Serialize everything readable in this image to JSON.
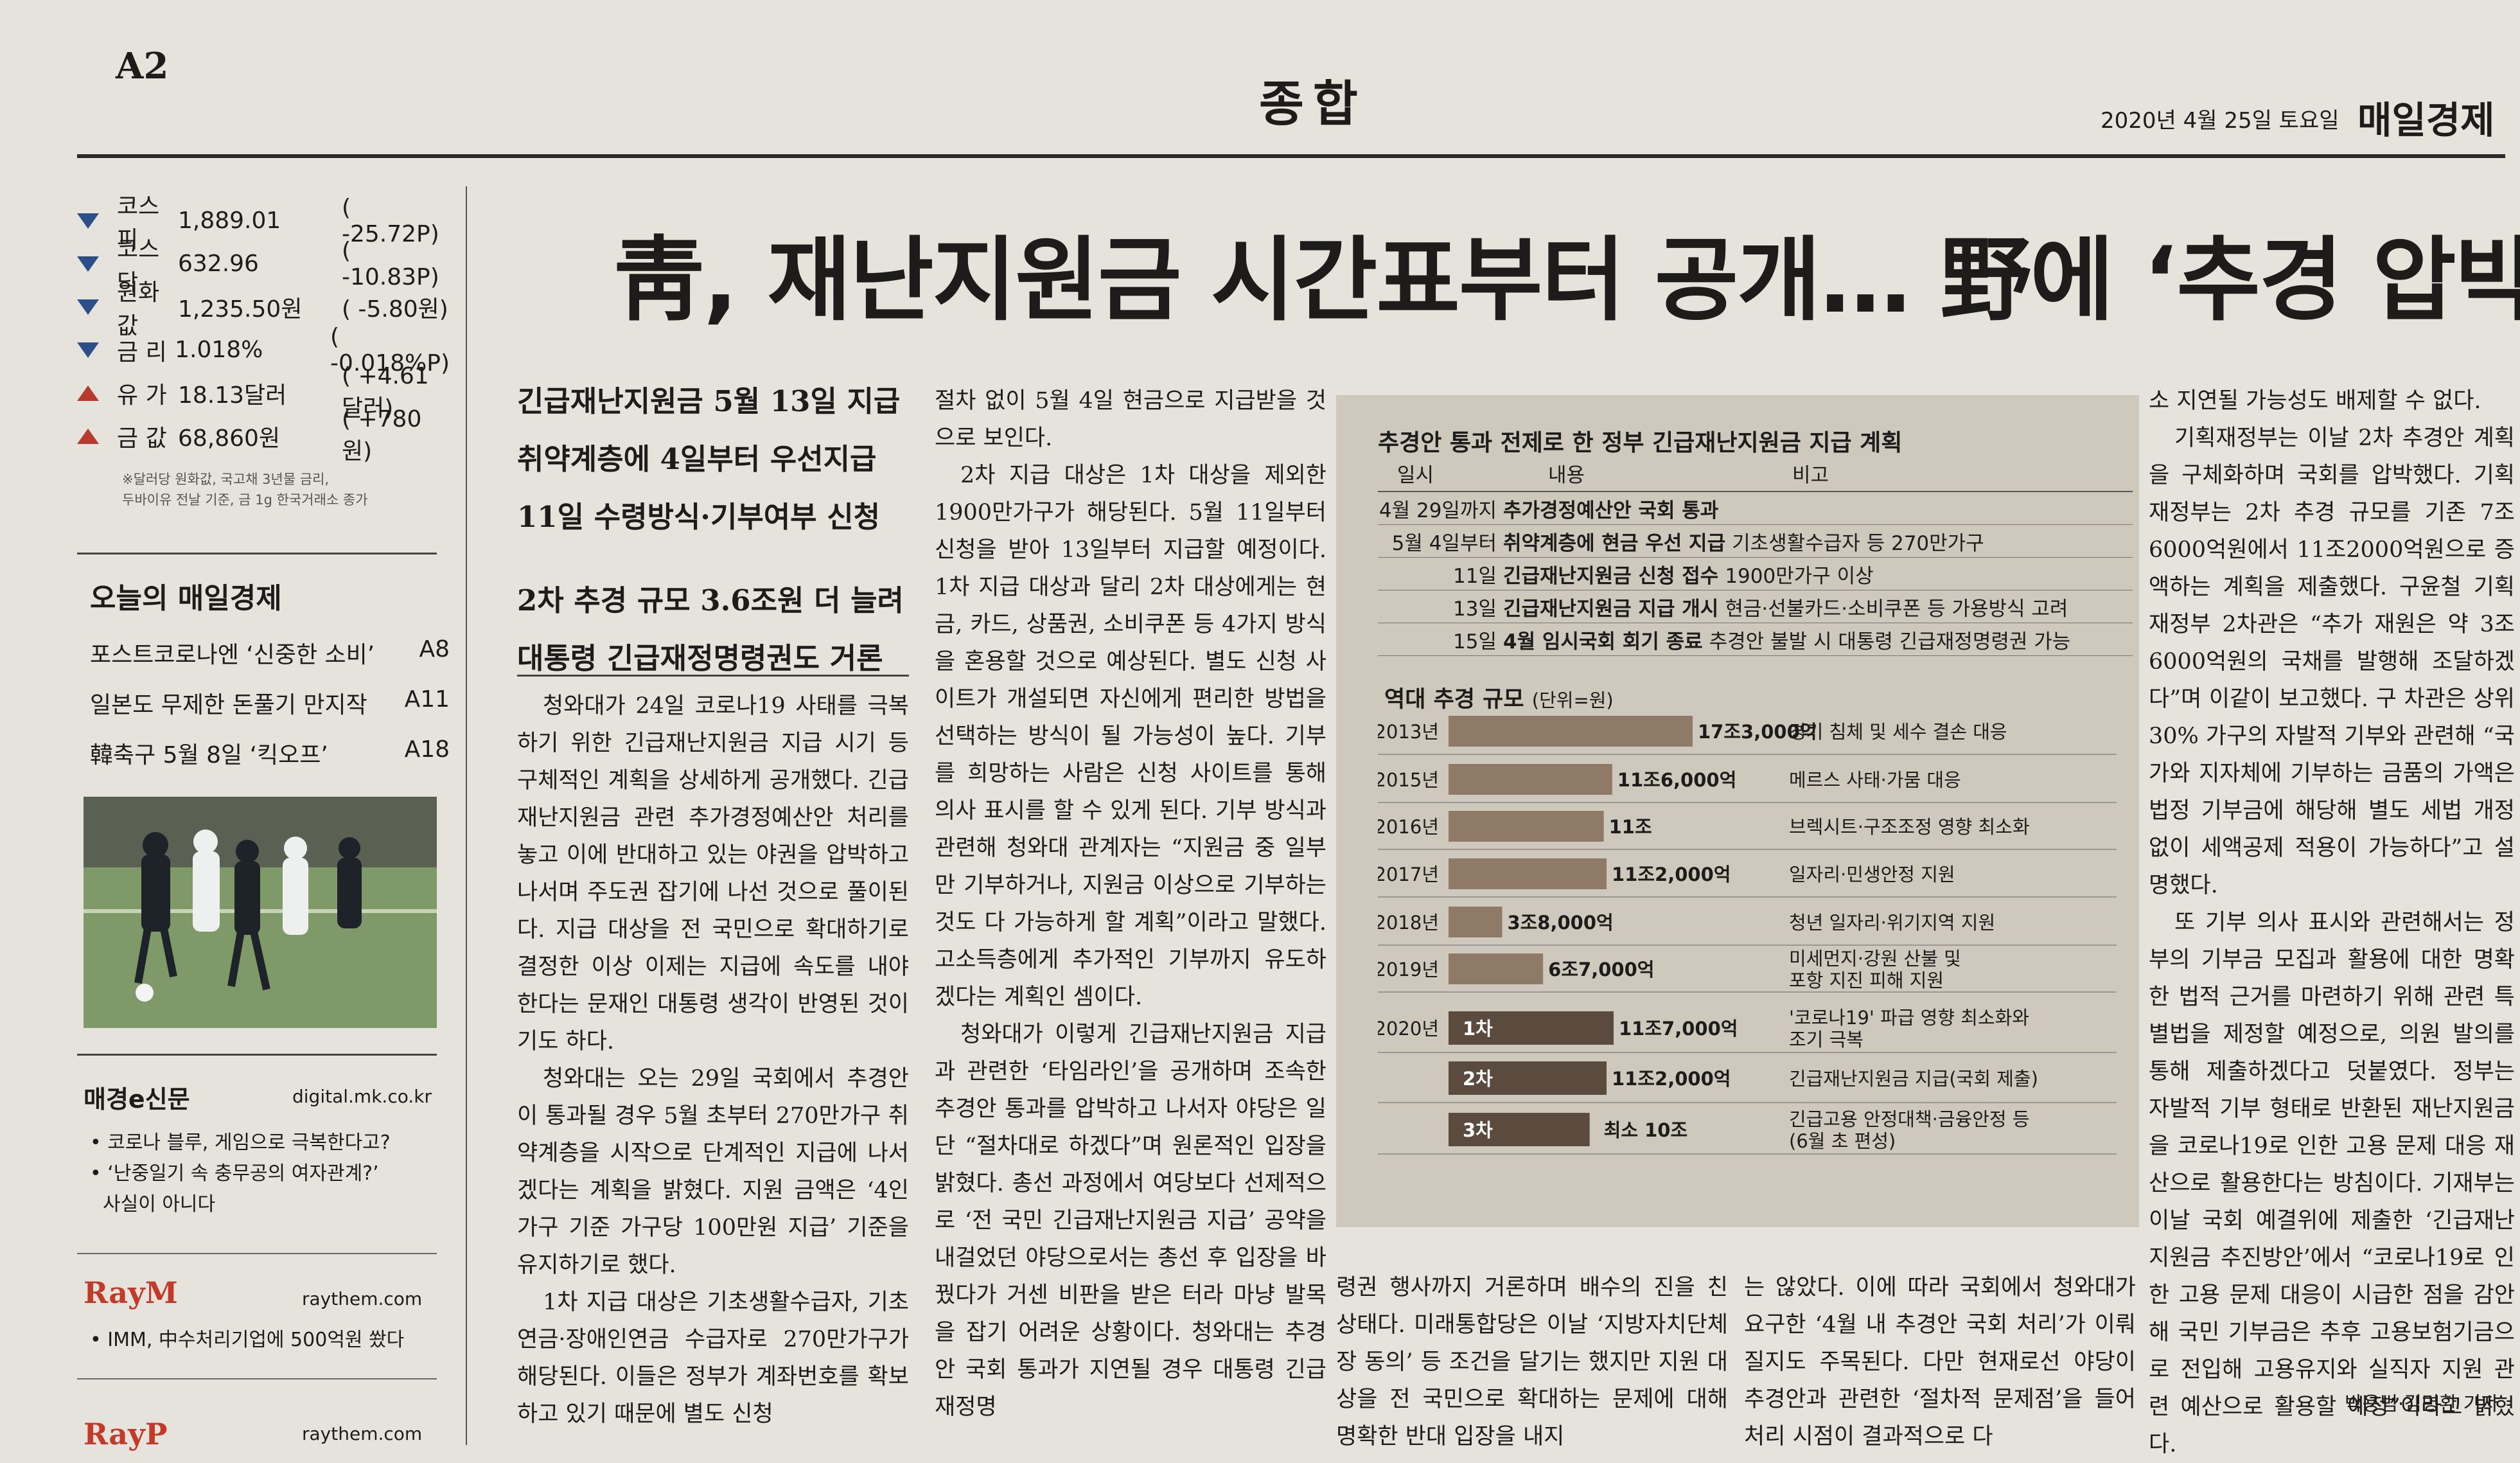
{
  "header": {
    "page": "A2",
    "section": "종합",
    "date": "2020년 4월 25일 토요일",
    "paper": "매일경제"
  },
  "markets": [
    {
      "dir": "down",
      "name": "코스피",
      "value": "1,889.01",
      "change": "( -25.72P)"
    },
    {
      "dir": "down",
      "name": "코스닥",
      "value": "632.96",
      "change": "( -10.83P)"
    },
    {
      "dir": "down",
      "name": "원화값",
      "value": "1,235.50원",
      "change": "( -5.80원)"
    },
    {
      "dir": "down",
      "name": "금 리",
      "value": "1.018%",
      "change": "( -0.018%P)"
    },
    {
      "dir": "up",
      "name": "유 가",
      "value": "18.13달러",
      "change": "( +4.61달러)"
    },
    {
      "dir": "up",
      "name": "금 값",
      "value": "68,860원",
      "change": "( +780원)"
    }
  ],
  "markets_note": [
    "※달러당 원화값, 국고채 3년물 금리,",
    "두바이유 전날 기준, 금 1g 한국거래소 종가"
  ],
  "today": {
    "title": "오늘의 매일경제",
    "items": [
      {
        "text": "포스트코로나엔 ‘신중한 소비’",
        "page": "A8"
      },
      {
        "text": "일본도 무제한 돈풀기 만지작",
        "page": "A11"
      },
      {
        "text": "韓축구 5월 8일 ‘킥오프’",
        "page": "A18"
      }
    ]
  },
  "epaper": {
    "brand": "매경e신문",
    "url": "digital.mk.co.kr",
    "items": [
      "• 코로나 블루, 게임으로 극복한다고?",
      "• ‘난중일기 속 충무공의 여자관계?’",
      "사실이 아니다"
    ]
  },
  "ads": {
    "raym_logo": "RayM",
    "raym_url": "raythem.com",
    "raym_item": "• IMM, 中수처리기업에 500억원 쐈다",
    "rayp_logo": "RayP",
    "rayp_url": "raythem.com"
  },
  "headline": "靑, 재난지원금 시간표부터 공개… 野에 ‘추경 압박’",
  "subheads": [
    [
      "긴급재난지원금 5월 13일 지급",
      "취약계층에 4일부터 우선지급",
      "11일 수령방식·기부여부 신청"
    ],
    [
      "2차 추경 규모 3.6조원 더 늘려",
      "대통령 긴급재정명령권도 거론"
    ]
  ],
  "col1": [
    "청와대가 24일 코로나19 사태를 극복하기 위한 긴급재난지원금 지급 시기 등 구체적인 계획을 상세하게 공개했다. 긴급재난지원금 관련 추가경정예산안 처리를 놓고 이에 반대하고 있는 야권을 압박하고 나서며 주도권 잡기에 나선 것으로 풀이된다. 지급 대상을 전 국민으로 확대하기로 결정한 이상 이제는 지급에 속도를 내야 한다는 문재인 대통령 생각이 반영된 것이기도 하다.",
    "청와대는 오는 29일 국회에서 추경안이 통과될 경우 5월 초부터 270만가구 취약계층을 시작으로 단계적인 지급에 나서겠다는 계획을 밝혔다. 지원 금액은 ‘4인 가구 기준 가구당 100만원 지급’ 기준을 유지하기로 했다.",
    "1차 지급 대상은 기초생활수급자, 기초연금·장애인연금 수급자로 270만가구가 해당된다. 이들은 정부가 계좌번호를 확보하고 있기 때문에 별도 신청"
  ],
  "col2": [
    "절차 없이 5월 4일 현금으로 지급받을 것으로 보인다.",
    "2차 지급 대상은 1차 대상을 제외한 1900만가구가 해당된다. 5월 11일부터 신청을 받아 13일부터 지급할 예정이다. 1차 지급 대상과 달리 2차 대상에게는 현금, 카드, 상품권, 소비쿠폰 등 4가지 방식을 혼용할 것으로 예상된다. 별도 신청 사이트가 개설되면 자신에게 편리한 방법을 선택하는 방식이 될 가능성이 높다. 기부를 희망하는 사람은 신청 사이트를 통해 의사 표시를 할 수 있게 된다. 기부 방식과 관련해 청와대 관계자는 “지원금 중 일부만 기부하거나, 지원금 이상으로 기부하는 것도 다 가능하게 할 계획”이라고 말했다. 고소득층에게 추가적인 기부까지 유도하겠다는 계획인 셈이다.",
    "청와대가 이렇게 긴급재난지원금 지급과 관련한 ‘타임라인’을 공개하며 조속한 추경안 통과를 압박하고 나서자 야당은 일단 “절차대로 하겠다”며 원론적인 입장을 밝혔다. 총선 과정에서 여당보다 선제적으로 ‘전 국민 긴급재난지원금 지급’ 공약을 내걸었던 야당으로서는 총선 후 입장을 바꿨다가 거센 비판을 받은 터라 마냥 발목을 잡기 어려운 상황이다. 청와대는 추경안 국회 통과가 지연될 경우 대통령 긴급재정명"
  ],
  "col3": [
    "령권 행사까지 거론하며 배수의 진을 친 상태다. 미래통합당은 이날 ‘지방자치단체장 동의’ 등 조건을 달기는 했지만 지원 대상을 전 국민으로 확대하는 문제에 대해 명확한 반대 입장을 내지"
  ],
  "col4": [
    "는 않았다. 이에 따라 국회에서 청와대가 요구한 ‘4월 내 추경안 국회 처리’가 이뤄질지도 주목된다. 다만 현재로선 야당이 추경안과 관련한 ‘절차적 문제점’을 들어 처리 시점이 결과적으로 다"
  ],
  "col5": [
    "소 지연될 가능성도 배제할 수 없다.",
    "기획재정부는 이날 2차 추경안 계획을 구체화하며 국회를 압박했다. 기획재정부는 2차 추경 규모를 기존 7조6000억원에서 11조2000억원으로 증액하는 계획을 제출했다. 구윤철 기획재정부 2차관은 “추가 재원은 약 3조6000억원의 국채를 발행해 조달하겠다”며 이같이 보고했다. 구 차관은 상위 30% 가구의 자발적 기부와 관련해 “국가와 지자체에 기부하는 금품의 가액은 법정 기부금에 해당해 별도 세법 개정 없이 세액공제 적용이 가능하다”고 설명했다.",
    "또 기부 의사 표시와 관련해서는 정부의 기부금 모집과 활용에 대한 명확한 법적 근거를 마련하기 위해 관련 특별법을 제정할 예정으로, 의원 발의를 통해 제출하겠다고 덧붙였다. 정부는 자발적 기부 형태로 반환된 재난지원금을 코로나19로 인한 고용 문제 대응 재산으로 활용한다는 방침이다. 기재부는 이날 국회 예결위에 제출한 ‘긴급재난지원금 추진방안’에서 “코로나19로 인한 고용 문제 대응이 시급한 점을 감안해 국민 기부금은 추후 고용보험기금으로 전입해 고용유지와 실직자 지원 관련 예산으로 활용할 예정”이라고 밝혔다."
  ],
  "byline": "박용범·김명환 기자",
  "plan_table": {
    "title": "추경안 통과 전제로 한 정부 긴급재난지원금 지급 계획",
    "headers": [
      "일시",
      "내용",
      "비고"
    ],
    "rows": [
      {
        "date": "4월 29일까지",
        "content": "추가경정예산안 국회 통과",
        "note": ""
      },
      {
        "date": "5월 4일부터",
        "content": "취약계층에 현금 우선 지급",
        "note": "기초생활수급자 등 270만가구"
      },
      {
        "date": "11일",
        "content": "긴급재난지원금 신청 접수",
        "note": "1900만가구 이상"
      },
      {
        "date": "13일",
        "content": "긴급재난지원금 지급 개시",
        "note": "현금·선불카드·소비쿠폰 등 가용방식 고려"
      },
      {
        "date": "15일",
        "content": "4월 임시국회 회기 종료",
        "note": "추경안 불발 시 대통령 긴급재정명령권 가능"
      }
    ]
  },
  "chart_data": {
    "type": "bar",
    "title": "역대 추경 규모",
    "unit": "(단위=원)",
    "categories": [
      "2013년",
      "2015년",
      "2016년",
      "2017년",
      "2018년",
      "2019년",
      "2020년 1차",
      "2020년 2차",
      "2020년 3차"
    ],
    "category_labels": [
      "2013년",
      "2015년",
      "2016년",
      "2017년",
      "2018년",
      "2019년",
      "2020년",
      "",
      ""
    ],
    "bar_tags": [
      "",
      "",
      "",
      "",
      "",
      "",
      "1차",
      "2차",
      "3차"
    ],
    "values": [
      17.3,
      11.6,
      11.0,
      11.2,
      3.8,
      6.7,
      11.7,
      11.2,
      10.0
    ],
    "value_labels": [
      "17조3,000억",
      "11조6,000억",
      "11조",
      "11조2,000억",
      "3조8,000억",
      "6조7,000억",
      "11조7,000억",
      "11조2,000억",
      "최소 10조"
    ],
    "notes": [
      "경기 침체 및 세수 결손 대응",
      "메르스 사태·가뭄 대응",
      "브렉시트·구조조정 영향 최소화",
      "일자리·민생안정 지원",
      "청년 일자리·위기지역 지원",
      "미세먼지·강원 산불 및\n포항 지진 피해 지원",
      "'코로나19' 파급 영향 최소화와\n조기 극복",
      "긴급재난지원금 지급(국회 제출)",
      "긴급고용 안정대책·금융안정 등\n(6월 초 편성)"
    ],
    "value_unit": "조원",
    "colors": {
      "bar": "#8e7a66",
      "dark_bar": "#5b4b3e"
    }
  }
}
